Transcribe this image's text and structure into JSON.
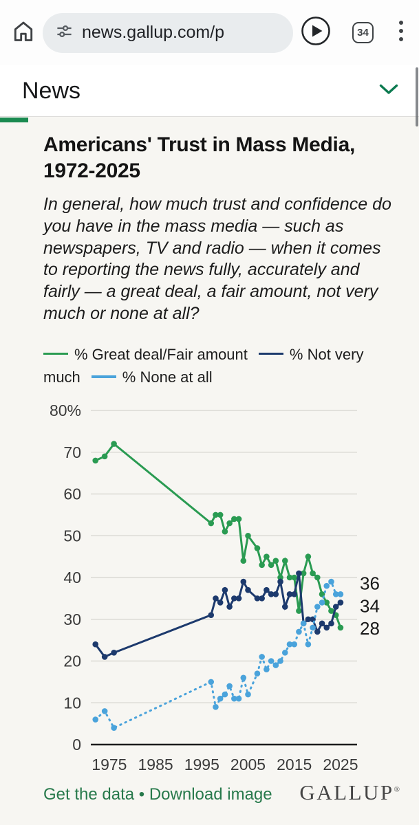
{
  "browser": {
    "url": "news.gallup.com/p",
    "tab_count": "34",
    "icons": [
      "home-icon",
      "site-settings-icon",
      "play-icon",
      "tab-count-badge",
      "kebab-menu-icon"
    ]
  },
  "site_nav": {
    "title": "News",
    "chevron_icon": "chevron-down-icon",
    "accent_color": "#1a8a50"
  },
  "article": {
    "title": "Americans' Trust in Mass Media, 1972-2025",
    "question": "In general, how much trust and confidence do you have in the mass media — such as newspapers, TV and radio — when it comes to reporting the news fully, accurately and fairly — a great deal, a fair amount, not very much or none at all?"
  },
  "footer": {
    "link1": "Get the data",
    "bullet": "•",
    "link2": "Download image",
    "logo": "GALLUP",
    "registered": "®"
  },
  "colors": {
    "accent_green": "#1a8a50",
    "link_green": "#27794b",
    "series_green": "#2a9b52",
    "series_navy": "#1d3a6d",
    "series_blue": "#4aa3db"
  },
  "chart_data": {
    "type": "line",
    "title": "Americans' Trust in Mass Media, 1972-2025",
    "xlabel": "",
    "ylabel": "",
    "grid": true,
    "legend_position": "top",
    "ylim": [
      0,
      80
    ],
    "xlim": [
      1971,
      2026.5
    ],
    "y_ticks": [
      {
        "v": 80,
        "label": "80%"
      },
      {
        "v": 70,
        "label": "70"
      },
      {
        "v": 60,
        "label": "60"
      },
      {
        "v": 50,
        "label": "50"
      },
      {
        "v": 40,
        "label": "40"
      },
      {
        "v": 30,
        "label": "30"
      },
      {
        "v": 20,
        "label": "20"
      },
      {
        "v": 10,
        "label": "10"
      },
      {
        "v": 0,
        "label": "0"
      }
    ],
    "x_ticks": [
      {
        "v": 1975,
        "label": "1975"
      },
      {
        "v": 1985,
        "label": "1985"
      },
      {
        "v": 1995,
        "label": "1995"
      },
      {
        "v": 2005,
        "label": "2005"
      },
      {
        "v": 2015,
        "label": "2015"
      },
      {
        "v": 2025,
        "label": "2025"
      }
    ],
    "years": [
      1972,
      1974,
      1976,
      1997,
      1998,
      1999,
      2000,
      2001,
      2002,
      2003,
      2004,
      2005,
      2007,
      2008,
      2009,
      2010,
      2011,
      2012,
      2013,
      2014,
      2015,
      2016,
      2017,
      2018,
      2019,
      2020,
      2021,
      2022,
      2023,
      2024,
      2025
    ],
    "series": [
      {
        "name": "% Great deal/Fair amount",
        "color": "#2a9b52",
        "dotted": false,
        "values": [
          68,
          69,
          72,
          53,
          55,
          55,
          51,
          53,
          54,
          54,
          44,
          50,
          47,
          43,
          45,
          43,
          44,
          40,
          44,
          40,
          40,
          32,
          41,
          45,
          41,
          40,
          36,
          34,
          32,
          31,
          28
        ]
      },
      {
        "name": "% Not very much",
        "color": "#1d3a6d",
        "dotted": false,
        "values": [
          24,
          21,
          22,
          31,
          35,
          34,
          37,
          33,
          35,
          35,
          39,
          37,
          35,
          35,
          37,
          36,
          36,
          39,
          33,
          36,
          36,
          41,
          29,
          30,
          30,
          27,
          29,
          28,
          29,
          33,
          34
        ]
      },
      {
        "name": "% None at all",
        "color": "#4aa3db",
        "dotted": true,
        "values": [
          6,
          8,
          4,
          15,
          9,
          11,
          12,
          14,
          11,
          11,
          16,
          12,
          17,
          21,
          18,
          20,
          19,
          20,
          22,
          24,
          24,
          27,
          29,
          24,
          28,
          33,
          34,
          38,
          39,
          36,
          36
        ]
      }
    ],
    "legend": [
      {
        "label": "% Great deal/Fair amount",
        "color": "#2a9b52",
        "style": "solid"
      },
      {
        "label": "% Not very much",
        "color": "#1d3a6d",
        "style": "solid"
      },
      {
        "label": "% None at all",
        "color": "#4aa3db",
        "style": "dotted"
      }
    ],
    "end_labels": [
      {
        "text": "36",
        "series": 2
      },
      {
        "text": "34",
        "series": 1
      },
      {
        "text": "28",
        "series": 0
      }
    ]
  }
}
